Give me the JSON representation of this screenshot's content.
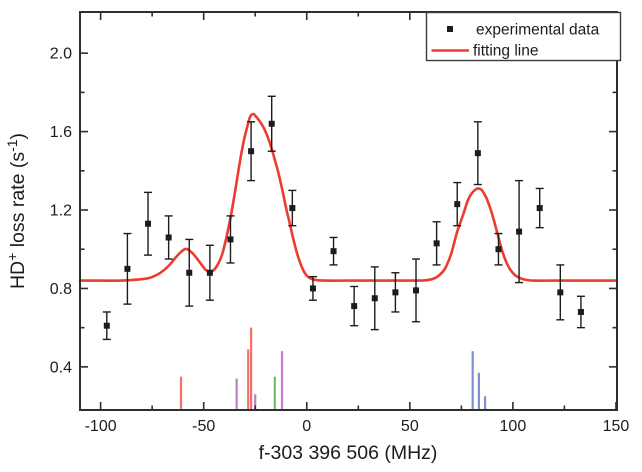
{
  "chart_data": {
    "type": "scatter",
    "title": "",
    "xlabel": "f-303 396 506 (MHz)",
    "ylabel": "HD+ loss rate (s-1)",
    "ylabel_parts": [
      {
        "t": "HD"
      },
      {
        "t": "+",
        "sup": true
      },
      {
        "t": " loss rate (s"
      },
      {
        "t": "-1",
        "sup": true
      },
      {
        "t": ")"
      }
    ],
    "x_range": [
      -110,
      150.5
    ],
    "y_range": [
      0.18,
      2.21
    ],
    "x_ticks": [
      -100,
      -50,
      0,
      50,
      100,
      150
    ],
    "x_minor_ticks": [
      -75,
      -25,
      25,
      75,
      125
    ],
    "y_ticks": [
      0.4,
      0.8,
      1.2,
      1.6,
      2.0
    ],
    "y_minor_ticks": [
      0.6,
      1.0,
      1.4,
      1.8
    ],
    "grid": false,
    "legend_position": "top-right",
    "legend": [
      {
        "label": "experimental data",
        "marker": "square",
        "color": "#1c1c1c"
      },
      {
        "label": "fitting line",
        "marker": "line",
        "color": "#ec3b31"
      }
    ],
    "points_format": "[x_MHz, loss_rate_s-1, error_s-1]",
    "experimental_data": [
      [
        -97,
        0.61,
        0.07
      ],
      [
        -87,
        0.9,
        0.18
      ],
      [
        -77,
        1.13,
        0.16
      ],
      [
        -67,
        1.06,
        0.11
      ],
      [
        -57,
        0.88,
        0.17
      ],
      [
        -47,
        0.88,
        0.14
      ],
      [
        -37,
        1.05,
        0.12
      ],
      [
        -27,
        1.5,
        0.15
      ],
      [
        -17,
        1.64,
        0.14
      ],
      [
        -7,
        1.21,
        0.09
      ],
      [
        3,
        0.8,
        0.06
      ],
      [
        13,
        0.99,
        0.07
      ],
      [
        23,
        0.71,
        0.1
      ],
      [
        33,
        0.75,
        0.16
      ],
      [
        43,
        0.78,
        0.1
      ],
      [
        53,
        0.79,
        0.16
      ],
      [
        63,
        1.03,
        0.11
      ],
      [
        73,
        1.23,
        0.11
      ],
      [
        83,
        1.49,
        0.16
      ],
      [
        93,
        1.0,
        0.08
      ],
      [
        103,
        1.09,
        0.26
      ],
      [
        113,
        1.21,
        0.1
      ],
      [
        123,
        0.78,
        0.14
      ],
      [
        133,
        0.68,
        0.08
      ]
    ],
    "fitting_line": {
      "baseline": 0.84,
      "peaks_summary": [
        {
          "center": -59,
          "max": 1.0
        },
        {
          "center": -26.5,
          "max": 1.69
        },
        {
          "center": 83,
          "max": 1.31
        }
      ],
      "points": [
        [
          -110,
          0.84
        ],
        [
          -100,
          0.84
        ],
        [
          -90,
          0.84
        ],
        [
          -82,
          0.845
        ],
        [
          -76,
          0.855
        ],
        [
          -71,
          0.88
        ],
        [
          -67,
          0.915
        ],
        [
          -63,
          0.965
        ],
        [
          -60,
          0.995
        ],
        [
          -58,
          1.0
        ],
        [
          -55,
          0.975
        ],
        [
          -52,
          0.935
        ],
        [
          -49,
          0.895
        ],
        [
          -47,
          0.885
        ],
        [
          -45,
          0.895
        ],
        [
          -43,
          0.925
        ],
        [
          -41,
          0.975
        ],
        [
          -39,
          1.06
        ],
        [
          -37,
          1.16
        ],
        [
          -35,
          1.28
        ],
        [
          -33,
          1.41
        ],
        [
          -31,
          1.53
        ],
        [
          -29,
          1.62
        ],
        [
          -27.5,
          1.675
        ],
        [
          -26,
          1.69
        ],
        [
          -24.5,
          1.675
        ],
        [
          -22,
          1.64
        ],
        [
          -20,
          1.6
        ],
        [
          -18,
          1.545
        ],
        [
          -16,
          1.475
        ],
        [
          -14,
          1.4
        ],
        [
          -12,
          1.31
        ],
        [
          -10,
          1.21
        ],
        [
          -8,
          1.12
        ],
        [
          -6,
          1.03
        ],
        [
          -4,
          0.955
        ],
        [
          -2,
          0.9
        ],
        [
          0,
          0.865
        ],
        [
          2,
          0.85
        ],
        [
          5,
          0.842
        ],
        [
          10,
          0.84
        ],
        [
          20,
          0.84
        ],
        [
          30,
          0.84
        ],
        [
          40,
          0.84
        ],
        [
          50,
          0.84
        ],
        [
          57,
          0.841
        ],
        [
          61,
          0.848
        ],
        [
          64,
          0.865
        ],
        [
          67,
          0.9
        ],
        [
          70,
          0.975
        ],
        [
          73,
          1.09
        ],
        [
          76,
          1.18
        ],
        [
          78,
          1.245
        ],
        [
          80,
          1.285
        ],
        [
          82,
          1.305
        ],
        [
          83.5,
          1.31
        ],
        [
          85,
          1.3
        ],
        [
          87,
          1.265
        ],
        [
          89,
          1.21
        ],
        [
          91,
          1.14
        ],
        [
          93,
          1.06
        ],
        [
          95,
          0.985
        ],
        [
          97,
          0.93
        ],
        [
          99,
          0.892
        ],
        [
          101,
          0.868
        ],
        [
          104,
          0.85
        ],
        [
          107,
          0.843
        ],
        [
          110,
          0.84
        ],
        [
          120,
          0.84
        ],
        [
          135,
          0.84
        ],
        [
          150,
          0.84
        ]
      ]
    },
    "stick_spectrum": {
      "note": "vertical transition lines along bottom axis; top value in axis units",
      "lines": [
        {
          "x": -61,
          "top": 0.35,
          "color": "#f2736c",
          "group": "red"
        },
        {
          "x": -34,
          "top": 0.34,
          "color": "#be7ec8",
          "group": "magenta"
        },
        {
          "x": -28.4,
          "top": 0.49,
          "color": "#f2736c",
          "group": "red"
        },
        {
          "x": -27,
          "top": 0.6,
          "color": "#f2736c",
          "group": "red"
        },
        {
          "x": -25,
          "top": 0.26,
          "color": "#be7ec8",
          "group": "magenta"
        },
        {
          "x": -15.5,
          "top": 0.35,
          "color": "#6cbe70",
          "group": "green"
        },
        {
          "x": -12,
          "top": 0.48,
          "color": "#be7ec8",
          "group": "magenta"
        },
        {
          "x": 80.5,
          "top": 0.48,
          "color": "#7e90ce",
          "group": "blue"
        },
        {
          "x": 83.5,
          "top": 0.37,
          "color": "#7e90ce",
          "group": "blue"
        },
        {
          "x": 86.5,
          "top": 0.25,
          "color": "#7e90ce",
          "group": "blue"
        }
      ]
    },
    "colors": {
      "fit_line": "#ec3b31",
      "data": "#1c1c1c",
      "frame": "#2e2e2e",
      "background": "#ffffff"
    }
  }
}
